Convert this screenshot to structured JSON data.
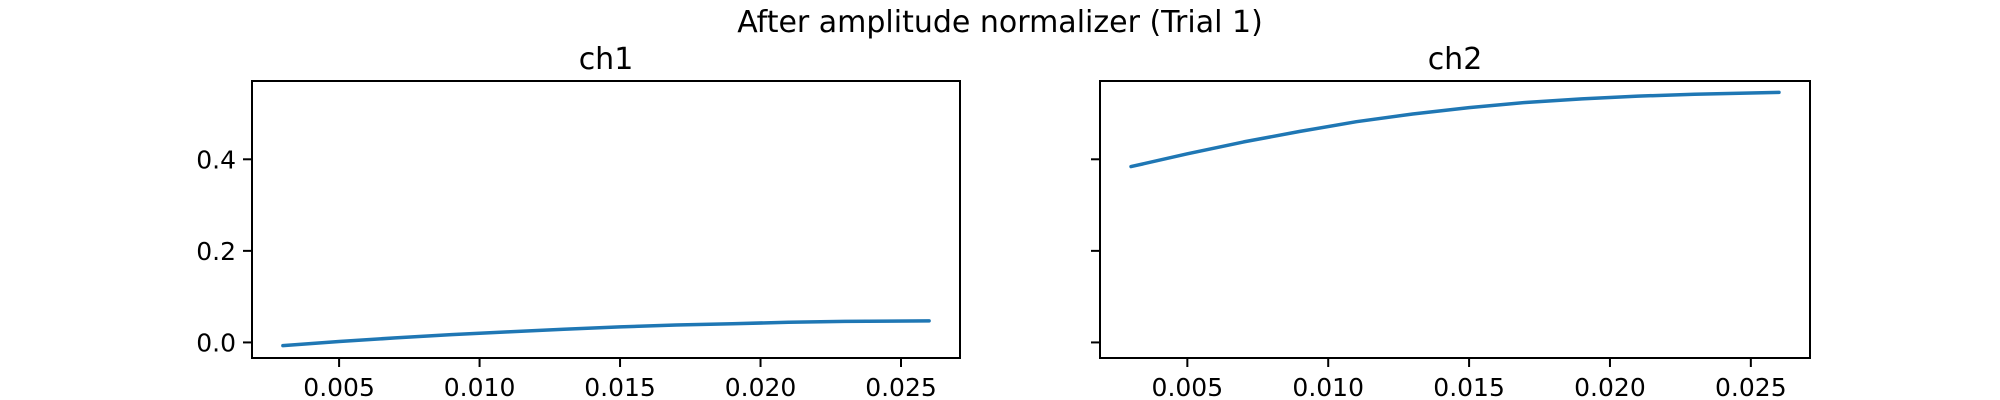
{
  "figure": {
    "title": "After amplitude normalizer (Trial 1)"
  },
  "chart_data": [
    {
      "type": "line",
      "title": "ch1",
      "xlabel": "",
      "ylabel": "",
      "xlim": [
        0.0019,
        0.0271
      ],
      "ylim": [
        -0.034,
        0.571
      ],
      "xticks": [
        0.005,
        0.01,
        0.015,
        0.02,
        0.025
      ],
      "xtick_labels": [
        "0.005",
        "0.010",
        "0.015",
        "0.020",
        "0.025"
      ],
      "yticks": [
        0.0,
        0.2,
        0.4
      ],
      "ytick_labels": [
        "0.0",
        "0.2",
        "0.4"
      ],
      "grid": false,
      "series": [
        {
          "color": "#1f77b4",
          "x": [
            0.003,
            0.005,
            0.007,
            0.009,
            0.011,
            0.013,
            0.015,
            0.017,
            0.019,
            0.021,
            0.023,
            0.026
          ],
          "y": [
            -0.007,
            0.002,
            0.01,
            0.017,
            0.023,
            0.029,
            0.034,
            0.038,
            0.041,
            0.044,
            0.046,
            0.047
          ]
        }
      ]
    },
    {
      "type": "line",
      "title": "ch2",
      "xlabel": "",
      "ylabel": "",
      "xlim": [
        0.0019,
        0.0271
      ],
      "ylim": [
        -0.034,
        0.571
      ],
      "xticks": [
        0.005,
        0.01,
        0.015,
        0.02,
        0.025
      ],
      "xtick_labels": [
        "0.005",
        "0.010",
        "0.015",
        "0.020",
        "0.025"
      ],
      "yticks": [
        0.0,
        0.2,
        0.4
      ],
      "ytick_labels": [
        "",
        "",
        ""
      ],
      "grid": false,
      "series": [
        {
          "color": "#1f77b4",
          "x": [
            0.003,
            0.005,
            0.007,
            0.009,
            0.011,
            0.013,
            0.015,
            0.017,
            0.019,
            0.021,
            0.023,
            0.026
          ],
          "y": [
            0.384,
            0.412,
            0.438,
            0.461,
            0.482,
            0.499,
            0.513,
            0.524,
            0.532,
            0.538,
            0.542,
            0.546
          ]
        }
      ]
    }
  ]
}
